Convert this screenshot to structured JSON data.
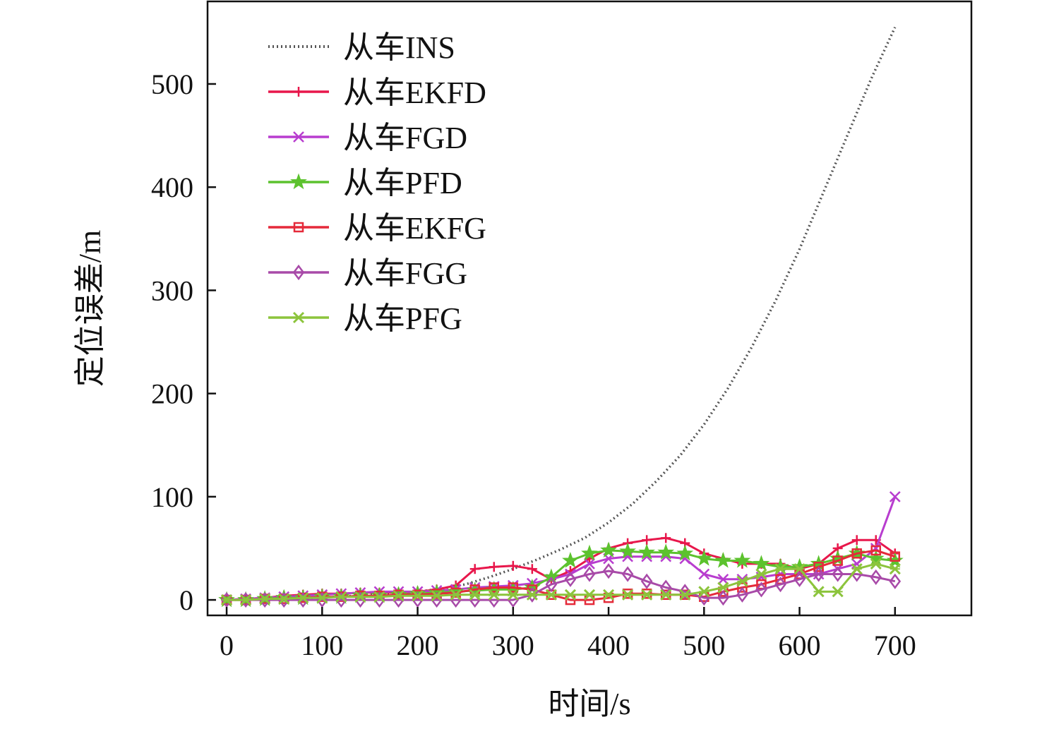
{
  "chart_data": {
    "type": "line",
    "xlabel": "时间/s",
    "ylabel": "定位误差/m",
    "xlim": [
      -20,
      780
    ],
    "ylim": [
      -15,
      580
    ],
    "xticks": [
      0,
      100,
      200,
      300,
      400,
      500,
      600,
      700
    ],
    "yticks": [
      0,
      100,
      200,
      300,
      400,
      500
    ],
    "tick_labels_x": [
      "0",
      "100",
      "200",
      "300",
      "400",
      "500",
      "600",
      "700"
    ],
    "tick_labels_y": [
      "0",
      "100",
      "200",
      "300",
      "400",
      "500"
    ],
    "legend_position": "top-left",
    "grid": false,
    "series": [
      {
        "name": "从车INS",
        "color": "#555555",
        "marker": "none",
        "dash": "dotted",
        "x": [
          0,
          25,
          50,
          75,
          100,
          125,
          150,
          175,
          200,
          225,
          250,
          275,
          300,
          325,
          350,
          375,
          400,
          425,
          450,
          475,
          500,
          525,
          550,
          575,
          600,
          625,
          650,
          675,
          700
        ],
        "y": [
          0,
          0.5,
          1,
          1.5,
          2.5,
          3.5,
          5,
          6.5,
          8,
          11,
          15,
          22,
          30,
          39,
          49,
          60,
          75,
          93,
          115,
          140,
          170,
          205,
          245,
          290,
          340,
          395,
          450,
          505,
          555
        ]
      },
      {
        "name": "从车EKFD",
        "color": "#e8174b",
        "marker": "plus",
        "x": [
          0,
          20,
          40,
          60,
          80,
          100,
          120,
          140,
          160,
          180,
          200,
          220,
          240,
          260,
          280,
          300,
          320,
          340,
          360,
          380,
          400,
          420,
          440,
          460,
          480,
          500,
          520,
          540,
          560,
          580,
          600,
          620,
          640,
          660,
          680,
          700
        ],
        "y": [
          0,
          1,
          2,
          4,
          5,
          6,
          6,
          7,
          7,
          7,
          8,
          10,
          14,
          30,
          32,
          33,
          30,
          20,
          28,
          40,
          50,
          55,
          58,
          60,
          55,
          45,
          40,
          35,
          35,
          35,
          30,
          35,
          50,
          58,
          58,
          45
        ]
      },
      {
        "name": "从车FGD",
        "color": "#b83dcf",
        "marker": "x",
        "x": [
          0,
          20,
          40,
          60,
          80,
          100,
          120,
          140,
          160,
          180,
          200,
          220,
          240,
          260,
          280,
          300,
          320,
          340,
          360,
          380,
          400,
          420,
          440,
          460,
          480,
          500,
          520,
          540,
          560,
          580,
          600,
          620,
          640,
          660,
          680,
          700
        ],
        "y": [
          0,
          1,
          2,
          3,
          4,
          5,
          6,
          7,
          8,
          8,
          8,
          9,
          10,
          12,
          13,
          14,
          16,
          20,
          25,
          35,
          40,
          42,
          42,
          42,
          40,
          25,
          20,
          20,
          22,
          25,
          25,
          25,
          30,
          35,
          50,
          100
        ]
      },
      {
        "name": "从车PFD",
        "color": "#5cc22e",
        "marker": "star",
        "x": [
          0,
          20,
          40,
          60,
          80,
          100,
          120,
          140,
          160,
          180,
          200,
          220,
          240,
          260,
          280,
          300,
          320,
          340,
          360,
          380,
          400,
          420,
          440,
          460,
          480,
          500,
          520,
          540,
          560,
          580,
          600,
          620,
          640,
          660,
          680,
          700
        ],
        "y": [
          0,
          0,
          1,
          2,
          2,
          3,
          3,
          4,
          4,
          5,
          6,
          7,
          8,
          9,
          10,
          10,
          12,
          22,
          38,
          45,
          48,
          47,
          46,
          46,
          45,
          40,
          38,
          38,
          35,
          32,
          32,
          35,
          40,
          45,
          40,
          38
        ]
      },
      {
        "name": "从车EKFG",
        "color": "#e52a3a",
        "marker": "square",
        "x": [
          0,
          20,
          40,
          60,
          80,
          100,
          120,
          140,
          160,
          180,
          200,
          220,
          240,
          260,
          280,
          300,
          320,
          340,
          360,
          380,
          400,
          420,
          440,
          460,
          480,
          500,
          520,
          540,
          560,
          580,
          600,
          620,
          640,
          660,
          680,
          700
        ],
        "y": [
          0,
          0,
          1,
          1,
          2,
          3,
          3,
          4,
          4,
          5,
          5,
          6,
          7,
          10,
          12,
          12,
          10,
          5,
          0,
          0,
          2,
          6,
          6,
          5,
          5,
          3,
          8,
          12,
          15,
          20,
          25,
          32,
          38,
          45,
          48,
          42
        ]
      },
      {
        "name": "从车FGG",
        "color": "#a84aa8",
        "marker": "diamond",
        "x": [
          0,
          20,
          40,
          60,
          80,
          100,
          120,
          140,
          160,
          180,
          200,
          220,
          240,
          260,
          280,
          300,
          320,
          340,
          360,
          380,
          400,
          420,
          440,
          460,
          480,
          500,
          520,
          540,
          560,
          580,
          600,
          620,
          640,
          660,
          680,
          700
        ],
        "y": [
          0,
          0,
          0,
          0,
          0,
          0,
          0,
          0,
          0,
          0,
          0,
          0,
          0,
          0,
          0,
          0,
          5,
          15,
          20,
          25,
          28,
          25,
          18,
          12,
          8,
          2,
          2,
          5,
          10,
          15,
          20,
          25,
          25,
          25,
          22,
          18
        ]
      },
      {
        "name": "从车PFG",
        "color": "#8cc43c",
        "marker": "cross",
        "x": [
          0,
          20,
          40,
          60,
          80,
          100,
          120,
          140,
          160,
          180,
          200,
          220,
          240,
          260,
          280,
          300,
          320,
          340,
          360,
          380,
          400,
          420,
          440,
          460,
          480,
          500,
          520,
          540,
          560,
          580,
          600,
          620,
          640,
          660,
          680,
          700
        ],
        "y": [
          0,
          0,
          1,
          1,
          2,
          2,
          3,
          3,
          3,
          4,
          4,
          4,
          5,
          5,
          5,
          5,
          5,
          5,
          5,
          5,
          5,
          5,
          5,
          5,
          5,
          8,
          12,
          18,
          25,
          30,
          30,
          8,
          8,
          30,
          35,
          30
        ]
      }
    ]
  }
}
